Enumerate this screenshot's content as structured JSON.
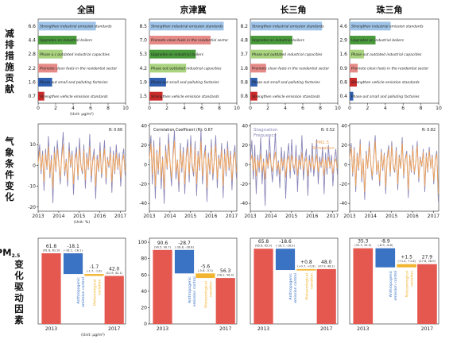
{
  "column_titles": [
    "全国",
    "京津冀",
    "长三角",
    "珠三角"
  ],
  "row_labels": {
    "row1": [
      "减",
      "排",
      "措",
      "施",
      "贡",
      "献"
    ],
    "row2": [
      "气",
      "象",
      "条",
      "件",
      "变",
      "化"
    ],
    "row3_pm_main": "PM",
    "row3_pm_sub": "2.5",
    "row3": [
      "变",
      "化",
      "驱",
      "动",
      "因",
      "素"
    ]
  },
  "colors": {
    "strengthen_industrial": "#9fc3e6",
    "upgrades_boilers": "#4a9a3c",
    "phase_out_capacities": "#a9d37e",
    "clean_fuels": "#e58a86",
    "phase_out_factories": "#2f5fae",
    "vehicle_standards": "#c92a2a",
    "obs_line": "#8a86b8",
    "sim_line": "#f0a45c",
    "pm_bar": "#e5584f",
    "anthro_bar": "#3a73c4",
    "meteo_bar": "#f2b531"
  },
  "chart_data": [
    {
      "type": "bar",
      "orientation": "horizontal",
      "panel": "全国",
      "categories": [
        "Strengthen industrial emission standards",
        "Upgrades on industrial boilers",
        "Phase o.c outdated industrial capacities",
        "Promote clean fuels in the residential sector",
        "Phase out small and polluting factories",
        "Strengthen vehicle emission standards"
      ],
      "values": [
        6.6,
        4.4,
        2.8,
        2.2,
        1.6,
        0.7
      ],
      "value_labels": [
        "6.6",
        "4.4",
        "2.8",
        "2.2",
        "1.6",
        "0.7"
      ],
      "xlim": [
        0,
        10
      ],
      "xticks": [
        "0",
        "2",
        "4",
        "6",
        "8",
        "10"
      ],
      "xlabel": "(Unit: μg/m³)"
    },
    {
      "type": "bar",
      "orientation": "horizontal",
      "panel": "京津冀",
      "categories": [
        "Strengthen industrial emission standards",
        "Promote clean fuels in the residential sector",
        "Upgrades on industrial boilers",
        "Phase out outdated industrial capacities",
        "Phase out small and polluting factories",
        "Strengthen vehicle emission standards"
      ],
      "values": [
        8.5,
        7.0,
        5.3,
        4.2,
        1.9,
        1.5
      ],
      "value_labels": [
        "8.5",
        "7.0",
        "5.3",
        "4.2",
        "1.9",
        "1.5"
      ],
      "xlim": [
        0,
        10
      ],
      "xticks": [
        "0",
        "2",
        "4",
        "6",
        "8",
        "10"
      ]
    },
    {
      "type": "bar",
      "orientation": "horizontal",
      "panel": "长三角",
      "categories": [
        "Strengthen industrial emission standards",
        "Upgrades on industrial boilers",
        "Phase out outdated industrial capacities",
        "Promote clean fuels in the residential sector",
        "Phase out small and polluting factories",
        "Strengthen vehicle emission standards"
      ],
      "values": [
        8.2,
        4.8,
        3.7,
        1.8,
        0.8,
        0.8
      ],
      "value_labels": [
        "8.2",
        "4.8",
        "3.7",
        "1.8",
        "0.8",
        "0.8"
      ],
      "xlim": [
        0,
        10
      ],
      "xticks": [
        "0",
        "2",
        "4",
        "6",
        "8",
        "10"
      ]
    },
    {
      "type": "bar",
      "orientation": "horizontal",
      "panel": "珠三角",
      "categories": [
        "Strengthen industrial emission standards",
        "Upgrades on industrial boilers",
        "Phase out outdated industrial capacities",
        "Promote clean fuels in the residential sector",
        "Strengthen vehicle emission standards",
        "Phase out small and polluting factories"
      ],
      "values": [
        4.6,
        2.9,
        1.6,
        0.9,
        0.8,
        0.4
      ],
      "value_labels": [
        "4.6",
        "2.9",
        "1.6",
        "0.9",
        "0.8",
        "0.4"
      ],
      "xlim": [
        0,
        10
      ],
      "xticks": [
        "0",
        "2",
        "4",
        "6",
        "8",
        "10"
      ]
    },
    {
      "type": "line",
      "panel": "全国",
      "annotation": "R: 0.66",
      "xlim": [
        2013,
        2017.25
      ],
      "xticks": [
        "2013",
        "2014",
        "2015",
        "2016",
        "2017"
      ],
      "ylim": [
        -22,
        20
      ],
      "yticks": [
        "-20",
        "-10",
        "0",
        "10"
      ],
      "yticks_values": [
        -20,
        -10,
        0,
        10
      ],
      "xlabel": "(Unit: %)",
      "series": [
        {
          "values": [
            2,
            10,
            -4,
            7,
            -12,
            8,
            -2,
            14,
            -6,
            5,
            -18,
            9,
            -3,
            12,
            1,
            -9,
            6,
            16,
            -5,
            3,
            -10,
            11,
            -1,
            7,
            -14,
            4,
            9,
            -7,
            13,
            0,
            -4,
            10,
            -11,
            6,
            -2,
            15,
            -8,
            3,
            8,
            -16,
            5,
            -3,
            11,
            -6,
            2,
            12,
            -9,
            4,
            -1,
            9,
            -13,
            7,
            -4,
            10,
            -2,
            6,
            -10,
            3,
            8,
            -5
          ]
        },
        {
          "values": [
            1,
            7,
            -2,
            5,
            -8,
            6,
            -1,
            9,
            -4,
            3,
            -11,
            6,
            -2,
            8,
            1,
            -6,
            4,
            10,
            -3,
            2,
            -7,
            7,
            0,
            5,
            -9,
            3,
            6,
            -5,
            8,
            0,
            -3,
            7,
            -7,
            4,
            -1,
            9,
            -5,
            2,
            5,
            -10,
            3,
            -2,
            7,
            -4,
            1,
            8,
            -6,
            3,
            0,
            6,
            -8,
            5,
            -3,
            6,
            -1,
            4,
            -6,
            2,
            5,
            -3
          ]
        }
      ]
    },
    {
      "type": "line",
      "panel": "京津冀",
      "annotation": "Correlation Coefficent (R): 0.67",
      "xlim": [
        2013,
        2017.25
      ],
      "xticks": [
        "2013",
        "2014",
        "2015",
        "2016",
        "2017"
      ],
      "ylim": [
        -48,
        42
      ],
      "yticks": [
        "-40",
        "-20",
        "0",
        "20",
        "40"
      ],
      "yticks_values": [
        -40,
        -20,
        0,
        20,
        40
      ],
      "series": [
        {
          "values": [
            10,
            30,
            -20,
            25,
            -35,
            15,
            -10,
            28,
            -25,
            8,
            -40,
            20,
            -5,
            32,
            0,
            -22,
            12,
            35,
            -15,
            5,
            -28,
            22,
            -8,
            18,
            -30,
            10,
            26,
            -18,
            30,
            -2,
            -12,
            24,
            -32,
            14,
            -6,
            36,
            -20,
            8,
            20,
            -38,
            12,
            -10,
            26,
            -16,
            4,
            30,
            -24,
            10,
            -4,
            22,
            -34,
            16,
            -12,
            24,
            -6,
            14,
            -26,
            8,
            20,
            -14
          ]
        },
        {
          "values": [
            6,
            22,
            -10,
            18,
            -22,
            12,
            -6,
            20,
            -14,
            6,
            -25,
            14,
            -3,
            22,
            2,
            -14,
            8,
            24,
            -8,
            4,
            -18,
            16,
            -4,
            12,
            -20,
            8,
            18,
            -10,
            20,
            0,
            -8,
            16,
            -20,
            10,
            -3,
            24,
            -12,
            6,
            14,
            -24,
            8,
            -6,
            18,
            -10,
            3,
            20,
            -15,
            7,
            -2,
            15,
            -22,
            11,
            -8,
            16,
            -3,
            10,
            -16,
            5,
            13,
            -8
          ]
        }
      ]
    },
    {
      "type": "line",
      "panel": "长三角",
      "annotation": "R: 0.52",
      "legend": [
        "Stagnation Frequency",
        "PM2.5 Simulation"
      ],
      "xlim": [
        2013,
        2017.25
      ],
      "xticks": [
        "2013",
        "2014",
        "2015",
        "2016",
        "2017"
      ],
      "ylim": [
        -48,
        42
      ],
      "yticks": [
        "-40",
        "-20",
        "0",
        "20",
        "40"
      ],
      "yticks_values": [
        -40,
        -20,
        0,
        20,
        40
      ],
      "series": [
        {
          "values": [
            5,
            25,
            -15,
            20,
            -30,
            10,
            -8,
            28,
            -20,
            6,
            -42,
            15,
            -4,
            30,
            0,
            -18,
            8,
            32,
            -12,
            4,
            -24,
            18,
            -6,
            14,
            -35,
            8,
            22,
            -14,
            26,
            -2,
            -10,
            20,
            -28,
            10,
            -5,
            30,
            -16,
            6,
            16,
            -32,
            10,
            -8,
            22,
            -12,
            3,
            26,
            -20,
            8,
            -3,
            18,
            -30,
            12,
            -10,
            20,
            -4,
            10,
            -22,
            6,
            16,
            -10
          ]
        },
        {
          "values": [
            3,
            10,
            -6,
            8,
            -12,
            5,
            -3,
            11,
            -8,
            3,
            -15,
            6,
            -2,
            12,
            1,
            -7,
            4,
            13,
            -5,
            2,
            -10,
            7,
            -2,
            6,
            -13,
            4,
            9,
            -6,
            10,
            0,
            -4,
            8,
            -11,
            5,
            -2,
            12,
            -6,
            3,
            7,
            -12,
            4,
            -3,
            9,
            -5,
            1,
            10,
            -8,
            3,
            -1,
            7,
            -11,
            5,
            -4,
            8,
            -2,
            4,
            -9,
            3,
            6,
            -4
          ]
        }
      ]
    },
    {
      "type": "line",
      "panel": "珠三角",
      "annotation": "R: 0.82",
      "xlim": [
        2013,
        2017.25
      ],
      "xticks": [
        "2013",
        "2014",
        "2015",
        "2016",
        "2017"
      ],
      "ylim": [
        -48,
        42
      ],
      "yticks": [
        "-40",
        "-20",
        "0",
        "20",
        "40"
      ],
      "yticks_values": [
        -40,
        -20,
        0,
        20,
        40
      ],
      "series": [
        {
          "values": [
            8,
            22,
            -12,
            18,
            -28,
            12,
            -6,
            26,
            -18,
            6,
            -36,
            14,
            -4,
            24,
            0,
            -16,
            8,
            30,
            -10,
            4,
            -22,
            16,
            -6,
            12,
            -30,
            8,
            20,
            -12,
            24,
            -2,
            -8,
            18,
            -26,
            10,
            -4,
            28,
            -14,
            6,
            14,
            -34,
            10,
            -8,
            20,
            -10,
            2,
            24,
            -18,
            8,
            -2,
            16,
            -28,
            12,
            -8,
            18,
            -4,
            10,
            -20,
            6,
            14,
            -38
          ]
        },
        {
          "values": [
            6,
            18,
            -9,
            15,
            -22,
            10,
            -4,
            21,
            -14,
            5,
            -28,
            11,
            -3,
            19,
            1,
            -12,
            6,
            24,
            -8,
            3,
            -17,
            13,
            -4,
            10,
            -23,
            6,
            16,
            -9,
            19,
            -1,
            -6,
            14,
            -20,
            8,
            -3,
            22,
            -11,
            5,
            11,
            -26,
            8,
            -6,
            16,
            -8,
            2,
            19,
            -14,
            6,
            -1,
            13,
            -22,
            9,
            -6,
            14,
            -3,
            8,
            -16,
            5,
            11,
            -30
          ]
        }
      ]
    },
    {
      "type": "bar",
      "subtype": "waterfall",
      "panel": "全国",
      "categories": [
        "2013",
        "Anthropogenic emission control",
        "Meteorological variation",
        "2017"
      ],
      "values": [
        61.8,
        -18.1,
        -1.7,
        42.0
      ],
      "value_labels": [
        "61.8",
        "-18.1",
        "-1.7",
        "42.0"
      ],
      "ranges": [
        "(61.8, 61.9)",
        "(-18.2, -18.1)",
        "(-1.7, -1.6)",
        "(41.9, 42.1)"
      ],
      "ylim": [
        0,
        75
      ],
      "xlabel": "(Unit: μg/m³)"
    },
    {
      "type": "bar",
      "subtype": "waterfall",
      "panel": "京津冀",
      "categories": [
        "2013",
        "Anthropogenic emission control",
        "Meteorological variation",
        "2017"
      ],
      "values": [
        90.6,
        -28.7,
        -5.6,
        56.3
      ],
      "value_labels": [
        "90.6",
        "-28.7",
        "-5.6",
        "56.3"
      ],
      "ranges": [
        "(90.5, 90.7)",
        "(-28.8, -28.6)",
        "(-5.6, -5.5)",
        "(56.2, 56.4)"
      ],
      "ylim": [
        0,
        105
      ],
      "yticks": [
        "0",
        "20",
        "40",
        "60",
        "80",
        "100"
      ],
      "yticks_values": [
        0,
        20,
        40,
        60,
        80,
        100
      ]
    },
    {
      "type": "bar",
      "subtype": "waterfall",
      "panel": "长三角",
      "categories": [
        "2013",
        "Anthropogenic emission control",
        "Meteorological variation",
        "2017"
      ],
      "values": [
        65.8,
        -18.6,
        0.8,
        48.0
      ],
      "value_labels": [
        "65.8",
        "-18.6",
        "+0.8",
        "48.0"
      ],
      "ranges": [
        "(65.8, 65.9)",
        "(-18.7, -18.5)",
        "(+0.7, +0.9)",
        "(47.9, 48.1)"
      ],
      "ylim": [
        0,
        75
      ]
    },
    {
      "type": "bar",
      "subtype": "waterfall",
      "panel": "珠三角",
      "categories": [
        "2013",
        "Anthropogenic emission control",
        "Meteorological variation",
        "2017"
      ],
      "values": [
        35.3,
        -8.9,
        1.5,
        27.9
      ],
      "value_labels": [
        "35.3",
        "-8.9",
        "+1.5",
        "27.9"
      ],
      "ranges": [
        "(35.3, 35.4)",
        "(-8.9, -8.8)",
        "(+1.4, +1.6)",
        "(27.8, 28.0)"
      ],
      "ylim": [
        0,
        40
      ]
    }
  ]
}
